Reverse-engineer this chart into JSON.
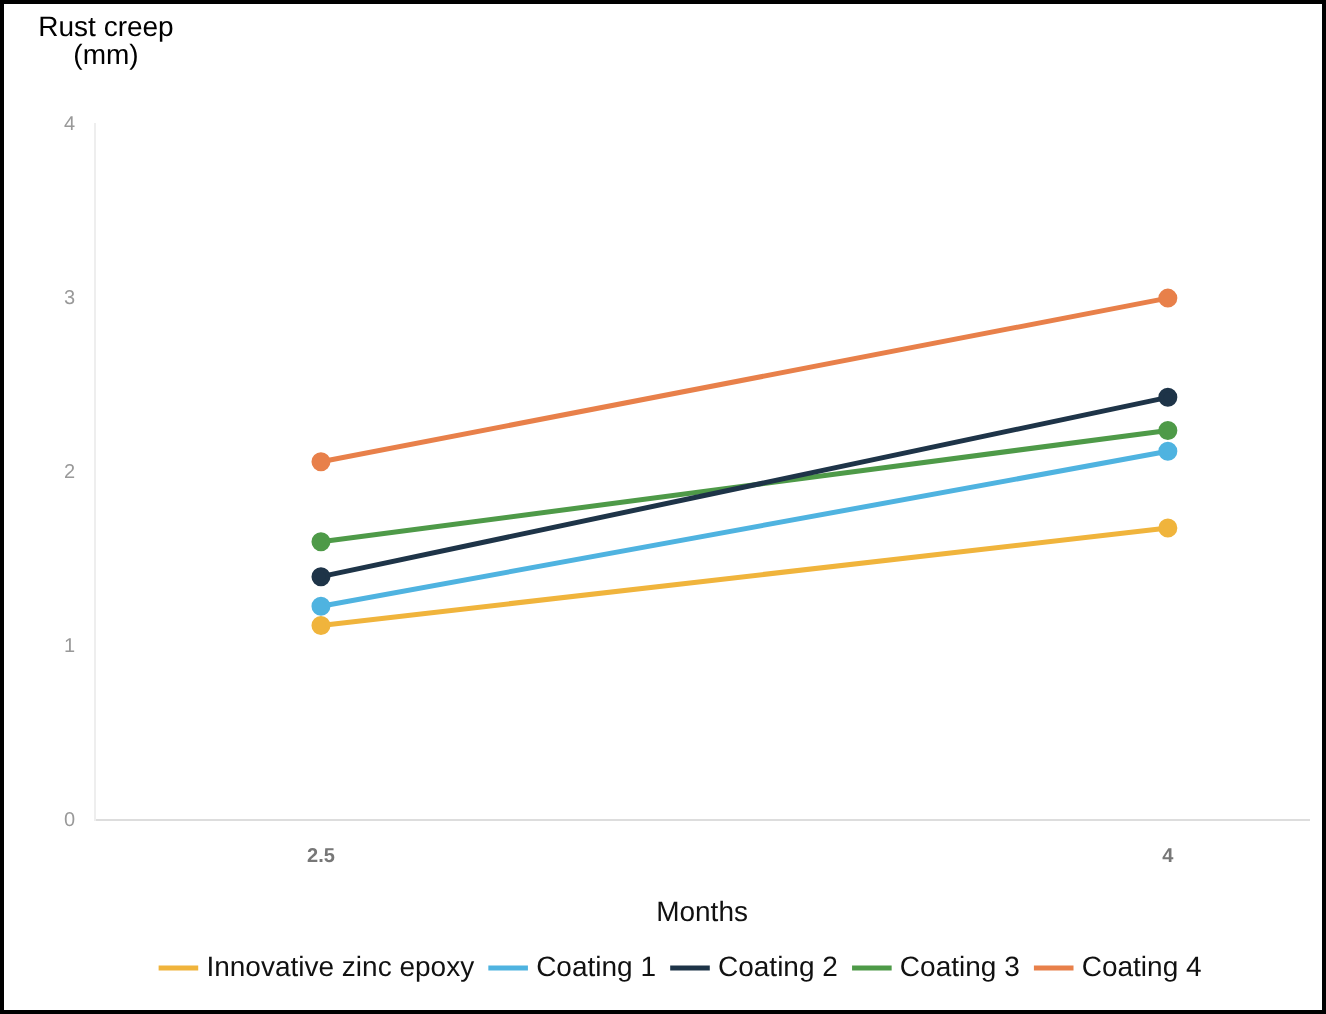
{
  "chart_data": {
    "type": "line",
    "xlabel": "Months",
    "ylabel": "Rust creep (mm)",
    "x": [
      2.5,
      4
    ],
    "xlim": [
      2.1,
      4.25
    ],
    "xticks": [
      2.5,
      4
    ],
    "ylim": [
      0,
      4
    ],
    "yticks": [
      0,
      1,
      2,
      3,
      4
    ],
    "grid": false,
    "legend": "bottom",
    "marker": "circle",
    "line_style": "solid",
    "series": [
      {
        "name": "Innovative zinc epoxy",
        "color": "#f0b43c",
        "values": [
          1.12,
          1.68
        ]
      },
      {
        "name": "Coating 1",
        "color": "#4fb3e0",
        "values": [
          1.23,
          2.12
        ]
      },
      {
        "name": "Coating 2",
        "color": "#1e3448",
        "values": [
          1.4,
          2.43
        ]
      },
      {
        "name": "Coating 3",
        "color": "#4e9a48",
        "values": [
          1.6,
          2.24
        ]
      },
      {
        "name": "Coating 4",
        "color": "#e8804a",
        "values": [
          2.06,
          3.0
        ]
      }
    ]
  }
}
